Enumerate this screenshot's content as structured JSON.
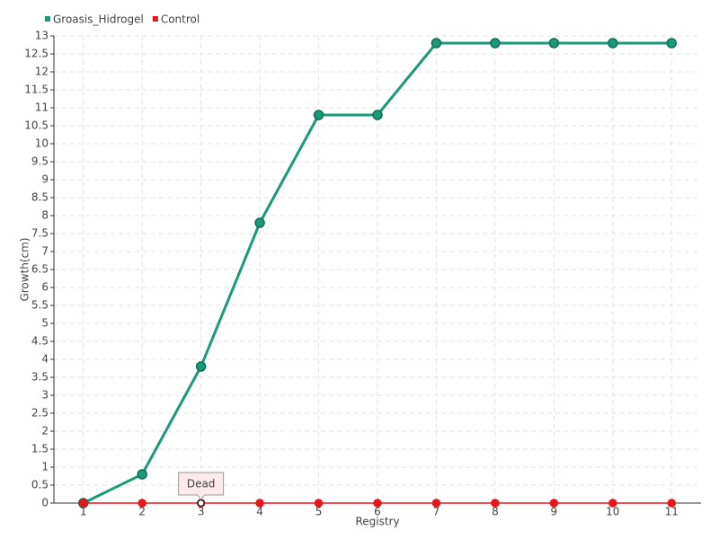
{
  "chart_data": {
    "type": "line",
    "x_label": "Registry",
    "y_label": "Growth(cm)",
    "categories": [
      "1",
      "2",
      "3",
      "4",
      "5",
      "6",
      "7",
      "8",
      "9",
      "10",
      "11"
    ],
    "series": [
      {
        "name": "Groasis_Hidrogel",
        "color": "#1a9a7a",
        "values": [
          0,
          0.8,
          3.8,
          7.8,
          10.8,
          10.8,
          12.8,
          12.8,
          12.8,
          12.8,
          12.8
        ]
      },
      {
        "name": "Control",
        "color": "#e8141e",
        "values": [
          0,
          0,
          0,
          0,
          0,
          0,
          0,
          0,
          0,
          0,
          0
        ]
      }
    ],
    "annotations": [
      {
        "text": "Dead",
        "x": "3",
        "y": 0
      }
    ],
    "ylim": [
      0,
      13
    ],
    "yticks": [
      0,
      0.5,
      1,
      1.5,
      2,
      2.5,
      3,
      3.5,
      4,
      4.5,
      5,
      5.5,
      6,
      6.5,
      7,
      7.5,
      8,
      8.5,
      9,
      9.5,
      10,
      10.5,
      11,
      11.5,
      12,
      12.5,
      13
    ],
    "grid": true,
    "legend": "top-left"
  }
}
